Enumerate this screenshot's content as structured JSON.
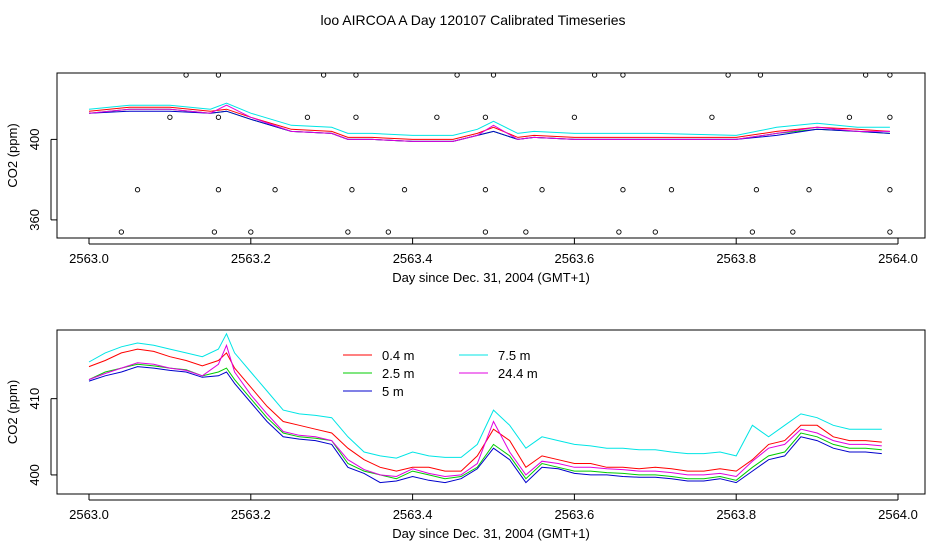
{
  "figure": {
    "title": "loo AIRCOA A  Day 120107  Calibrated Timeseries"
  },
  "chart_data": [
    {
      "type": "line",
      "xlabel": "Day since Dec. 31, 2004 (GMT+1)",
      "ylabel": "CO2 (ppm)",
      "xlim": [
        2563.0,
        2564.0
      ],
      "ylim": [
        351,
        433
      ],
      "xticks": [
        2563.0,
        2563.2,
        2563.4,
        2563.6,
        2563.8,
        2564.0
      ],
      "xtick_labels": [
        "2563.0",
        "2563.2",
        "2563.4",
        "2563.6",
        "2563.8",
        "2564.0"
      ],
      "yticks": [
        360,
        400
      ],
      "ytick_labels": [
        "360",
        "400"
      ],
      "grid": false,
      "series": [
        {
          "name": "0.4 m",
          "color": "#ff0000",
          "x": [
            2563.0,
            2563.05,
            2563.1,
            2563.15,
            2563.17,
            2563.2,
            2563.25,
            2563.3,
            2563.32,
            2563.35,
            2563.4,
            2563.45,
            2563.48,
            2563.5,
            2563.53,
            2563.55,
            2563.6,
            2563.7,
            2563.8,
            2563.85,
            2563.9,
            2563.95,
            2563.99
          ],
          "y": [
            414,
            416,
            416,
            414,
            415,
            411,
            405,
            404,
            401,
            401,
            400,
            400,
            403,
            406,
            401,
            402,
            401,
            401,
            401,
            404,
            406,
            405,
            404
          ]
        },
        {
          "name": "2.5 m",
          "color": "#00cc00",
          "x": [
            2563.0,
            2563.05,
            2563.1,
            2563.15,
            2563.17,
            2563.2,
            2563.25,
            2563.3,
            2563.32,
            2563.35,
            2563.4,
            2563.45,
            2563.48,
            2563.5,
            2563.53,
            2563.55,
            2563.6,
            2563.7,
            2563.8,
            2563.85,
            2563.9,
            2563.95,
            2563.99
          ],
          "y": [
            413,
            415,
            415,
            413,
            414,
            410,
            404,
            403,
            400,
            400,
            399,
            399,
            402,
            404,
            400,
            401,
            400,
            400,
            400,
            403,
            405,
            404,
            403
          ]
        },
        {
          "name": "5 m",
          "color": "#0000cc",
          "x": [
            2563.0,
            2563.05,
            2563.1,
            2563.15,
            2563.17,
            2563.2,
            2563.25,
            2563.3,
            2563.32,
            2563.35,
            2563.4,
            2563.45,
            2563.48,
            2563.5,
            2563.53,
            2563.55,
            2563.6,
            2563.7,
            2563.8,
            2563.85,
            2563.9,
            2563.95,
            2563.99
          ],
          "y": [
            413,
            414,
            414,
            413,
            414,
            410,
            404,
            403,
            400,
            400,
            399,
            399,
            402,
            404,
            400,
            401,
            400,
            400,
            400,
            402,
            405,
            404,
            403
          ]
        },
        {
          "name": "7.5 m",
          "color": "#00e5e5",
          "x": [
            2563.0,
            2563.05,
            2563.1,
            2563.15,
            2563.17,
            2563.2,
            2563.25,
            2563.3,
            2563.32,
            2563.35,
            2563.4,
            2563.45,
            2563.48,
            2563.5,
            2563.53,
            2563.55,
            2563.6,
            2563.7,
            2563.8,
            2563.85,
            2563.9,
            2563.95,
            2563.99
          ],
          "y": [
            415,
            417,
            417,
            415,
            418,
            413,
            407,
            406,
            403,
            403,
            402,
            402,
            405,
            409,
            403,
            404,
            403,
            403,
            402,
            406,
            408,
            406,
            406
          ]
        },
        {
          "name": "24.4 m",
          "color": "#e000e0",
          "x": [
            2563.0,
            2563.05,
            2563.1,
            2563.15,
            2563.17,
            2563.2,
            2563.25,
            2563.3,
            2563.32,
            2563.35,
            2563.4,
            2563.45,
            2563.48,
            2563.5,
            2563.53,
            2563.55,
            2563.6,
            2563.7,
            2563.8,
            2563.85,
            2563.9,
            2563.95,
            2563.99
          ],
          "y": [
            413,
            415,
            415,
            413,
            417,
            411,
            404,
            403,
            400,
            400,
            399,
            399,
            402,
            407,
            400,
            401,
            400,
            400,
            400,
            403,
            406,
            404,
            404
          ]
        }
      ],
      "points": {
        "x": [
          2563.04,
          2563.06,
          2563.1,
          2563.12,
          2563.155,
          2563.16,
          2563.16,
          2563.16,
          2563.2,
          2563.23,
          2563.27,
          2563.29,
          2563.32,
          2563.325,
          2563.33,
          2563.33,
          2563.37,
          2563.39,
          2563.43,
          2563.455,
          2563.49,
          2563.49,
          2563.49,
          2563.5,
          2563.54,
          2563.56,
          2563.6,
          2563.625,
          2563.655,
          2563.66,
          2563.66,
          2563.7,
          2563.72,
          2563.77,
          2563.79,
          2563.82,
          2563.825,
          2563.83,
          2563.87,
          2563.89,
          2563.94,
          2563.96,
          2563.99,
          2563.99,
          2563.99,
          2563.99
        ],
        "y": [
          354,
          375,
          411,
          432,
          354,
          375,
          411,
          432,
          354,
          375,
          411,
          432,
          354,
          375,
          411,
          432,
          354,
          375,
          411,
          432,
          354,
          375,
          411,
          432,
          354,
          375,
          411,
          432,
          354,
          375,
          432,
          354,
          375,
          411,
          432,
          354,
          375,
          432,
          354,
          375,
          411,
          432,
          354,
          375,
          411,
          432
        ]
      }
    },
    {
      "type": "line",
      "xlabel": "Day since Dec. 31, 2004 (GMT+1)",
      "ylabel": "CO2 (ppm)",
      "xlim": [
        2563.0,
        2564.0
      ],
      "ylim": [
        397.5,
        419
      ],
      "xticks": [
        2563.0,
        2563.2,
        2563.4,
        2563.6,
        2563.8,
        2564.0
      ],
      "xtick_labels": [
        "2563.0",
        "2563.2",
        "2563.4",
        "2563.6",
        "2563.8",
        "2564.0"
      ],
      "yticks": [
        400,
        410
      ],
      "ytick_labels": [
        "400",
        "410"
      ],
      "grid": false,
      "legend": {
        "position": "top-center",
        "columns": 2
      },
      "series": [
        {
          "name": "0.4 m",
          "color": "#ff0000",
          "x": [
            2563.0,
            2563.02,
            2563.04,
            2563.06,
            2563.08,
            2563.1,
            2563.12,
            2563.14,
            2563.16,
            2563.17,
            2563.18,
            2563.2,
            2563.22,
            2563.24,
            2563.26,
            2563.28,
            2563.3,
            2563.32,
            2563.34,
            2563.36,
            2563.38,
            2563.4,
            2563.42,
            2563.44,
            2563.46,
            2563.48,
            2563.5,
            2563.52,
            2563.54,
            2563.56,
            2563.58,
            2563.6,
            2563.62,
            2563.64,
            2563.66,
            2563.68,
            2563.7,
            2563.72,
            2563.74,
            2563.76,
            2563.78,
            2563.8,
            2563.82,
            2563.84,
            2563.86,
            2563.88,
            2563.9,
            2563.92,
            2563.94,
            2563.96,
            2563.98
          ],
          "y": [
            414.2,
            415.0,
            416.0,
            416.5,
            416.2,
            415.5,
            415.0,
            414.3,
            415.0,
            416.0,
            414.0,
            411.5,
            409.0,
            407.0,
            406.5,
            406.0,
            405.5,
            403.5,
            402.0,
            401.0,
            400.5,
            401.0,
            401.0,
            400.5,
            400.5,
            402.5,
            406.0,
            404.5,
            401.0,
            402.5,
            402.0,
            401.5,
            401.5,
            401.0,
            401.0,
            400.8,
            401.0,
            400.8,
            400.5,
            400.5,
            400.8,
            400.5,
            402.0,
            404.0,
            404.5,
            406.5,
            406.5,
            405.0,
            404.5,
            404.5,
            404.3
          ]
        },
        {
          "name": "2.5 m",
          "color": "#00cc00",
          "x": [
            2563.0,
            2563.02,
            2563.04,
            2563.06,
            2563.08,
            2563.1,
            2563.12,
            2563.14,
            2563.16,
            2563.17,
            2563.18,
            2563.2,
            2563.22,
            2563.24,
            2563.26,
            2563.28,
            2563.3,
            2563.32,
            2563.34,
            2563.36,
            2563.38,
            2563.4,
            2563.42,
            2563.44,
            2563.46,
            2563.48,
            2563.5,
            2563.52,
            2563.54,
            2563.56,
            2563.58,
            2563.6,
            2563.62,
            2563.64,
            2563.66,
            2563.68,
            2563.7,
            2563.72,
            2563.74,
            2563.76,
            2563.78,
            2563.8,
            2563.82,
            2563.84,
            2563.86,
            2563.88,
            2563.9,
            2563.92,
            2563.94,
            2563.96,
            2563.98
          ],
          "y": [
            412.5,
            413.5,
            414.0,
            414.5,
            414.3,
            414.0,
            413.8,
            413.0,
            413.5,
            414.0,
            412.5,
            410.0,
            407.5,
            405.5,
            405.0,
            404.8,
            404.5,
            401.5,
            400.5,
            400.0,
            399.5,
            400.5,
            400.0,
            399.5,
            399.8,
            401.0,
            404.0,
            402.5,
            399.5,
            401.5,
            401.0,
            400.5,
            400.5,
            400.3,
            400.2,
            400.0,
            400.0,
            399.8,
            399.5,
            399.5,
            399.8,
            399.3,
            401.0,
            402.5,
            403.0,
            405.5,
            405.0,
            404.0,
            403.5,
            403.5,
            403.3
          ]
        },
        {
          "name": "5 m",
          "color": "#0000cc",
          "x": [
            2563.0,
            2563.02,
            2563.04,
            2563.06,
            2563.08,
            2563.1,
            2563.12,
            2563.14,
            2563.16,
            2563.17,
            2563.18,
            2563.2,
            2563.22,
            2563.24,
            2563.26,
            2563.28,
            2563.3,
            2563.32,
            2563.34,
            2563.36,
            2563.38,
            2563.4,
            2563.42,
            2563.44,
            2563.46,
            2563.48,
            2563.5,
            2563.52,
            2563.54,
            2563.56,
            2563.58,
            2563.6,
            2563.62,
            2563.64,
            2563.66,
            2563.68,
            2563.7,
            2563.72,
            2563.74,
            2563.76,
            2563.78,
            2563.8,
            2563.82,
            2563.84,
            2563.86,
            2563.88,
            2563.9,
            2563.92,
            2563.94,
            2563.96,
            2563.98
          ],
          "y": [
            412.3,
            413.0,
            413.5,
            414.2,
            414.0,
            413.7,
            413.5,
            412.8,
            413.0,
            413.5,
            412.0,
            409.5,
            407.0,
            405.0,
            404.7,
            404.5,
            404.0,
            401.0,
            400.2,
            399.0,
            399.2,
            399.8,
            399.3,
            399.0,
            399.5,
            400.8,
            403.5,
            402.0,
            399.0,
            401.0,
            400.8,
            400.2,
            400.0,
            400.0,
            399.8,
            399.7,
            399.7,
            399.5,
            399.2,
            399.2,
            399.5,
            399.0,
            400.5,
            402.0,
            402.5,
            405.0,
            404.5,
            403.5,
            403.0,
            403.0,
            402.8
          ]
        },
        {
          "name": "7.5 m",
          "color": "#00e5e5",
          "x": [
            2563.0,
            2563.02,
            2563.04,
            2563.06,
            2563.08,
            2563.1,
            2563.12,
            2563.14,
            2563.16,
            2563.17,
            2563.18,
            2563.2,
            2563.22,
            2563.24,
            2563.26,
            2563.28,
            2563.3,
            2563.32,
            2563.34,
            2563.36,
            2563.38,
            2563.4,
            2563.42,
            2563.44,
            2563.46,
            2563.48,
            2563.5,
            2563.52,
            2563.54,
            2563.56,
            2563.58,
            2563.6,
            2563.62,
            2563.64,
            2563.66,
            2563.68,
            2563.7,
            2563.72,
            2563.74,
            2563.76,
            2563.78,
            2563.8,
            2563.82,
            2563.84,
            2563.86,
            2563.88,
            2563.9,
            2563.92,
            2563.94,
            2563.96,
            2563.98
          ],
          "y": [
            414.8,
            416.0,
            416.8,
            417.3,
            417.0,
            416.5,
            416.0,
            415.5,
            416.5,
            418.5,
            416.0,
            413.5,
            411.0,
            408.5,
            408.0,
            407.8,
            407.5,
            405.0,
            403.0,
            402.5,
            402.2,
            403.0,
            402.5,
            402.3,
            402.3,
            404.0,
            408.5,
            406.5,
            403.5,
            405.0,
            404.5,
            404.0,
            403.8,
            403.5,
            403.5,
            403.3,
            403.3,
            403.0,
            402.8,
            402.8,
            403.0,
            402.5,
            406.5,
            405.0,
            406.5,
            408.0,
            407.5,
            406.5,
            406.0,
            406.0,
            406.0
          ]
        },
        {
          "name": "24.4 m",
          "color": "#e000e0",
          "x": [
            2563.0,
            2563.02,
            2563.04,
            2563.06,
            2563.08,
            2563.1,
            2563.12,
            2563.14,
            2563.16,
            2563.17,
            2563.18,
            2563.2,
            2563.22,
            2563.24,
            2563.26,
            2563.28,
            2563.3,
            2563.32,
            2563.34,
            2563.36,
            2563.38,
            2563.4,
            2563.42,
            2563.44,
            2563.46,
            2563.48,
            2563.5,
            2563.52,
            2563.54,
            2563.56,
            2563.58,
            2563.6,
            2563.62,
            2563.64,
            2563.66,
            2563.68,
            2563.7,
            2563.72,
            2563.74,
            2563.76,
            2563.78,
            2563.8,
            2563.82,
            2563.84,
            2563.86,
            2563.88,
            2563.9,
            2563.92,
            2563.94,
            2563.96,
            2563.98
          ],
          "y": [
            412.5,
            413.3,
            414.0,
            414.7,
            414.5,
            414.0,
            413.7,
            413.0,
            414.5,
            417.0,
            413.5,
            410.5,
            408.0,
            405.7,
            405.2,
            405.0,
            404.5,
            402.0,
            400.7,
            400.0,
            399.8,
            400.8,
            400.2,
            399.8,
            400.0,
            401.5,
            407.0,
            403.0,
            400.0,
            401.8,
            401.5,
            401.0,
            401.0,
            400.8,
            400.7,
            400.5,
            400.5,
            400.3,
            400.0,
            400.0,
            400.2,
            399.8,
            401.8,
            403.5,
            404.0,
            406.0,
            405.5,
            404.5,
            404.0,
            404.0,
            403.8
          ]
        }
      ]
    }
  ]
}
